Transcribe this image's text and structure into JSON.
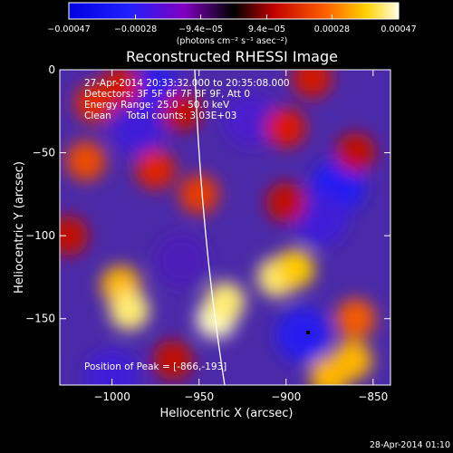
{
  "chart_data": {
    "type": "heatmap",
    "title": "Reconstructed RHESSI Image",
    "xlabel": "Heliocentric X (arcsec)",
    "ylabel": "Heliocentric Y (arcsec)",
    "xlim": [
      -1030,
      -840
    ],
    "ylim": [
      -190,
      0
    ],
    "xticks": [
      -1000,
      -950,
      -900,
      -850
    ],
    "xtick_labels": [
      "−1000",
      "−950",
      "−900",
      "−850"
    ],
    "yticks": [
      0,
      -50,
      -100,
      -150
    ],
    "ytick_labels": [
      "0",
      "−50",
      "−100",
      "−150"
    ],
    "colorbar": {
      "range": [
        -0.00047,
        0.00047
      ],
      "ticks": [
        -0.00047,
        -0.00028,
        -9.4e-05,
        9.4e-05,
        0.00028,
        0.00047
      ],
      "tick_labels": [
        "−0.00047",
        "−0.00028",
        "−9.4e−05",
        "9.4e−05",
        "0.00028",
        "0.00047"
      ],
      "unit_label": "(photons cm⁻² s⁻¹ asec⁻²)"
    },
    "annotations": {
      "time": "27-Apr-2014 20:33:32.000 to 20:35:08.000",
      "detectors": "Detectors: 3F 5F 6F 7F 8F 9F, Att 0",
      "energy": "Energy Range: 25.0 - 50.0 keV",
      "clean": "Clean     Total counts: 3.03E+03",
      "peak": "Position of Peak = [-866,-193]"
    },
    "footer_date": "28-Apr-2014 01:10",
    "bright_regions": [
      {
        "x": -995,
        "y": -130,
        "value": 0.0004
      },
      {
        "x": -990,
        "y": -145,
        "value": 0.00045
      },
      {
        "x": -940,
        "y": -150,
        "value": 0.00047
      },
      {
        "x": -935,
        "y": -140,
        "value": 0.00045
      },
      {
        "x": -905,
        "y": -125,
        "value": 0.00045
      },
      {
        "x": -895,
        "y": -120,
        "value": 0.00042
      },
      {
        "x": -862,
        "y": -175,
        "value": 0.0004
      },
      {
        "x": -860,
        "y": -150,
        "value": 0.00032
      },
      {
        "x": -875,
        "y": -185,
        "value": 0.0004
      },
      {
        "x": -1015,
        "y": -55,
        "value": 0.0003
      },
      {
        "x": -1010,
        "y": -20,
        "value": 0.00026
      },
      {
        "x": -995,
        "y": -10,
        "value": 0.00022
      },
      {
        "x": -975,
        "y": -60,
        "value": 0.00025
      },
      {
        "x": -950,
        "y": -75,
        "value": 0.00028
      },
      {
        "x": -960,
        "y": -25,
        "value": 0.0002
      },
      {
        "x": -900,
        "y": -35,
        "value": 0.00024
      },
      {
        "x": -885,
        "y": -5,
        "value": 0.00022
      },
      {
        "x": -900,
        "y": -80,
        "value": 0.0002
      },
      {
        "x": -860,
        "y": -50,
        "value": 0.0002
      },
      {
        "x": -1025,
        "y": -100,
        "value": 0.0002
      },
      {
        "x": -965,
        "y": -175,
        "value": 0.0002
      }
    ],
    "dark_regions": [
      {
        "x": -975,
        "y": -15,
        "value": -0.0004
      },
      {
        "x": -985,
        "y": -35,
        "value": -0.0003
      },
      {
        "x": -870,
        "y": -70,
        "value": -0.00042
      },
      {
        "x": -880,
        "y": -90,
        "value": -0.0003
      },
      {
        "x": -890,
        "y": -160,
        "value": -0.0004
      },
      {
        "x": -920,
        "y": -30,
        "value": -0.00025
      },
      {
        "x": -1000,
        "y": -185,
        "value": -0.0003
      },
      {
        "x": -960,
        "y": -115,
        "value": -0.0002
      }
    ]
  }
}
